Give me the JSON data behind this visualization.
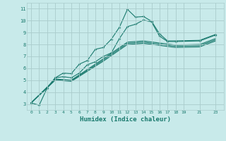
{
  "bg_color": "#c8eaea",
  "grid_color": "#aacccc",
  "line_color": "#1a7a6e",
  "xlabel": "Humidex (Indice chaleur)",
  "xlabel_fontsize": 6.5,
  "ylim": [
    2.5,
    11.5
  ],
  "xlim": [
    -0.5,
    24
  ],
  "yticks": [
    3,
    4,
    5,
    6,
    7,
    8,
    9,
    10,
    11
  ],
  "xticks": [
    0,
    1,
    2,
    3,
    4,
    5,
    6,
    7,
    8,
    9,
    10,
    11,
    12,
    13,
    14,
    15,
    16,
    17,
    18,
    19,
    21,
    23
  ],
  "line1_x": [
    0,
    1,
    2,
    3,
    4,
    5,
    6,
    7,
    8,
    9,
    10,
    11,
    12,
    13,
    14,
    15,
    16,
    17,
    18,
    21,
    23
  ],
  "line1_y": [
    3.1,
    2.9,
    4.35,
    5.2,
    5.6,
    5.55,
    6.35,
    6.65,
    7.6,
    7.75,
    8.45,
    9.45,
    10.95,
    10.3,
    10.35,
    9.95,
    8.9,
    8.3,
    8.3,
    8.35,
    8.85
  ],
  "line2_x": [
    0,
    2,
    3,
    4,
    5,
    6,
    7,
    8,
    9,
    10,
    11,
    12,
    13,
    14,
    15,
    16,
    17,
    18,
    21,
    23
  ],
  "line2_y": [
    3.1,
    4.35,
    5.2,
    5.3,
    5.2,
    5.6,
    6.3,
    6.55,
    7.0,
    7.3,
    8.5,
    9.5,
    9.7,
    10.05,
    9.9,
    8.7,
    8.25,
    8.25,
    8.3,
    8.8
  ],
  "line3_x": [
    0,
    3,
    5,
    9,
    12,
    14,
    18,
    21,
    23
  ],
  "line3_y": [
    3.1,
    5.1,
    5.0,
    6.8,
    8.2,
    8.3,
    7.95,
    8.0,
    8.5
  ],
  "line4_x": [
    0,
    3,
    5,
    9,
    12,
    14,
    18,
    21,
    23
  ],
  "line4_y": [
    3.1,
    5.05,
    4.95,
    6.7,
    8.1,
    8.2,
    7.85,
    7.9,
    8.4
  ],
  "line5_x": [
    0,
    3,
    5,
    9,
    12,
    14,
    18,
    21,
    23
  ],
  "line5_y": [
    3.1,
    5.0,
    4.9,
    6.6,
    8.0,
    8.1,
    7.75,
    7.8,
    8.3
  ]
}
